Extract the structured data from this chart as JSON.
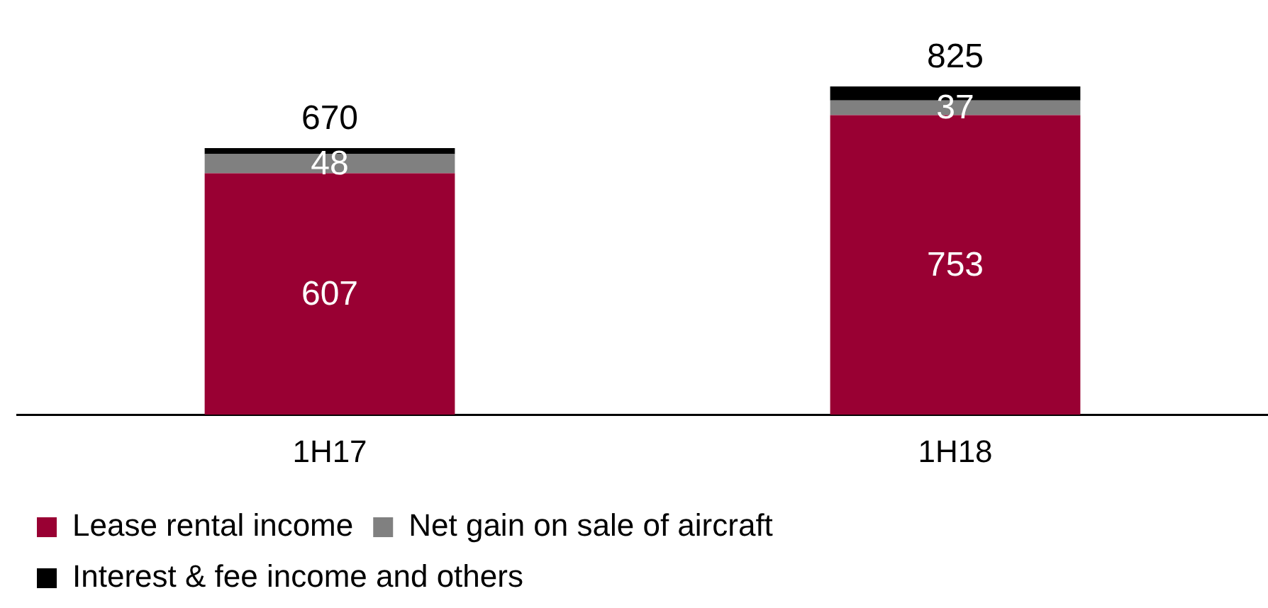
{
  "chart_data": {
    "type": "bar",
    "stacked": true,
    "categories": [
      "1H17",
      "1H18"
    ],
    "series": [
      {
        "name": "Lease rental income",
        "color": "#990033",
        "values": [
          607,
          753
        ],
        "value_labels": [
          "607",
          "753"
        ]
      },
      {
        "name": "Net gain on sale of aircraft",
        "color": "#808080",
        "values": [
          48,
          37
        ],
        "value_labels": [
          "48",
          "37"
        ]
      },
      {
        "name": "Interest & fee income and others",
        "color": "#000000",
        "values": [
          15,
          35
        ]
      }
    ],
    "totals": [
      "670",
      "825"
    ],
    "grid": false,
    "legend": "bottom"
  }
}
